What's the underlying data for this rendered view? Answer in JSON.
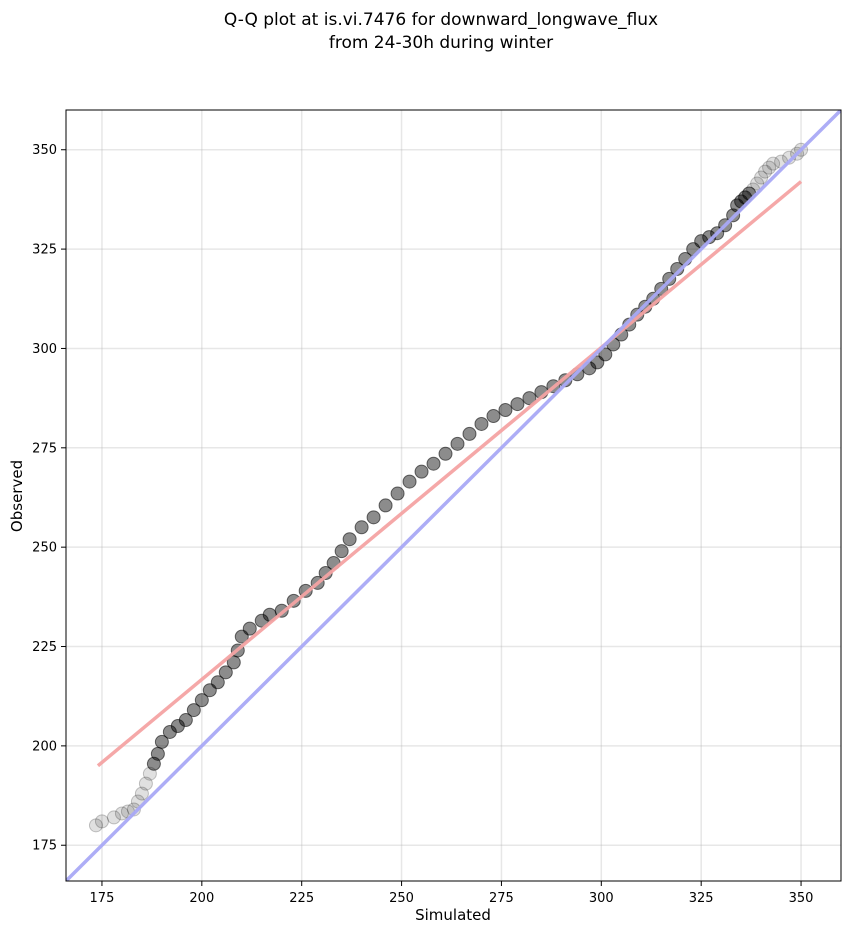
{
  "chart_data": {
    "type": "scatter",
    "title_line1": "Q-Q plot at is.vi.7476 for downward_longwave_flux",
    "title_line2": "from 24-30h during winter",
    "xlabel": "Simulated",
    "ylabel": "Observed",
    "xlim": [
      166,
      360
    ],
    "ylim": [
      166,
      360
    ],
    "xticks": [
      175,
      200,
      225,
      250,
      275,
      300,
      325,
      350
    ],
    "yticks": [
      175,
      200,
      225,
      250,
      275,
      300,
      325,
      350
    ],
    "grid": true,
    "colors": {
      "points": "#000000",
      "fit_line": "#f4a3a3",
      "identity_line": "#a9a9f5"
    },
    "fit_line": {
      "x": [
        174,
        350
      ],
      "y": [
        195,
        342
      ]
    },
    "identity_line": {
      "x": [
        166,
        360
      ],
      "y": [
        166,
        360
      ]
    },
    "quantile_curve": {
      "x": [
        173.5,
        175,
        178,
        180,
        181.5,
        183,
        184,
        185,
        186,
        187,
        188,
        189,
        190,
        192,
        194,
        196,
        198,
        200,
        202,
        204,
        206,
        208,
        209,
        210,
        212,
        215,
        217,
        220,
        223,
        226,
        229,
        231,
        233,
        235,
        237,
        240,
        243,
        246,
        249,
        252,
        255,
        258,
        261,
        264,
        267,
        270,
        273,
        276,
        279,
        282,
        285,
        288,
        291,
        294,
        297,
        299,
        301,
        303,
        305,
        307,
        309,
        311,
        313,
        315,
        317,
        319,
        321,
        323,
        325,
        327,
        329,
        331,
        333,
        334,
        335,
        336,
        337,
        338,
        339,
        340,
        341,
        342,
        343,
        345,
        347,
        349,
        350
      ],
      "y": [
        180,
        181,
        182,
        183,
        183.5,
        184,
        186,
        188,
        190.5,
        193,
        195.5,
        198,
        201,
        203.5,
        205,
        206.5,
        209,
        211.5,
        214,
        216,
        218.5,
        221,
        224,
        227.5,
        229.5,
        231.5,
        233,
        234,
        236.5,
        239,
        241,
        243.5,
        246,
        249,
        252,
        255,
        257.5,
        260.5,
        263.5,
        266.5,
        269,
        271,
        273.5,
        276,
        278.5,
        281,
        283,
        284.5,
        286,
        287.5,
        289,
        290.5,
        292,
        293.5,
        295,
        296.5,
        298.5,
        301,
        303.5,
        306,
        308.5,
        310.5,
        312.5,
        315,
        317.5,
        320,
        322.5,
        325,
        327,
        328,
        329,
        331,
        333.5,
        336,
        337,
        338,
        339,
        340,
        341.5,
        343,
        344.5,
        345.5,
        346.5,
        347,
        348,
        349,
        350
      ]
    }
  }
}
